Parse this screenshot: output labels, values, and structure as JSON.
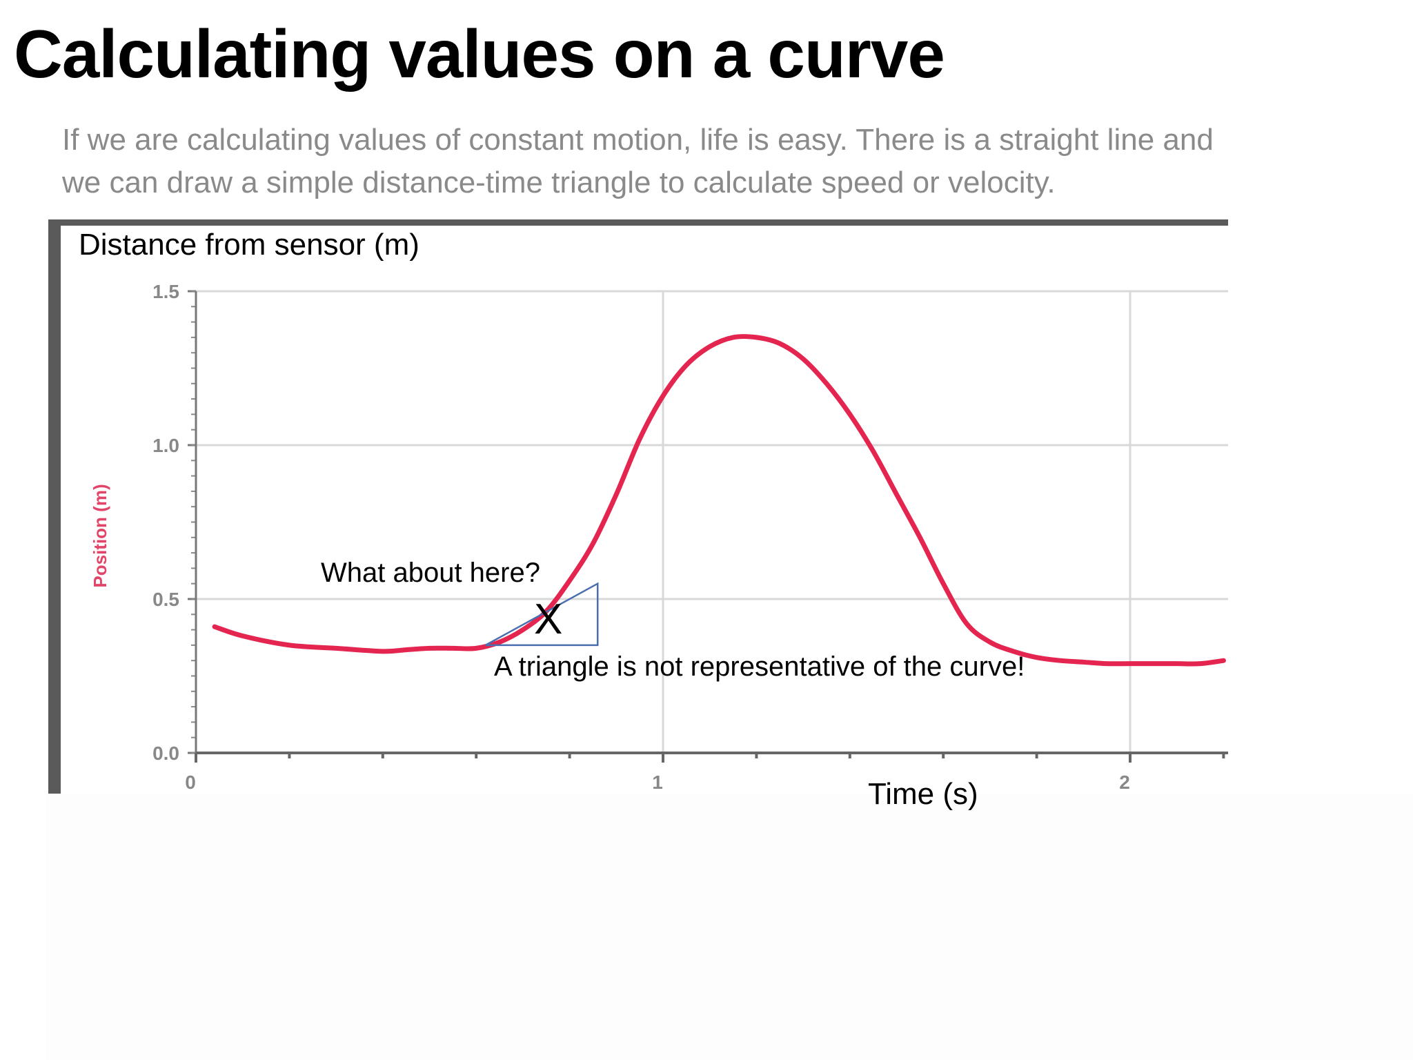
{
  "slide": {
    "title": "Calculating values on a curve",
    "body_lines": [
      "If we are calculating values of constant motion, life is easy. There is a straight line and",
      "we can draw a simple distance-time triangle to calculate speed or velocity."
    ]
  },
  "annotations": {
    "distance_label": "Distance from sensor (m)",
    "time_label": "Time (s)",
    "question": "What about here?",
    "marker": "X",
    "note": "A triangle is not representative of the curve!"
  },
  "chart_data": {
    "type": "line",
    "ylabel": "Position (m)",
    "xlim": [
      0,
      2.2
    ],
    "ylim": [
      0,
      1.5
    ],
    "x_ticks": [
      "0",
      "1",
      "2"
    ],
    "y_ticks": [
      "0.0",
      "0.5",
      "1.0",
      "1.5"
    ],
    "grid": true,
    "colors": {
      "series": "#e3254f",
      "axis_label": "#e3456a",
      "grid": "#d8d8d8",
      "triangle": "#4a6fb0"
    },
    "series": [
      {
        "x": [
          0.04,
          0.1,
          0.2,
          0.3,
          0.4,
          0.45,
          0.5,
          0.55,
          0.6,
          0.65,
          0.7,
          0.75,
          0.8,
          0.85,
          0.9,
          0.95,
          1.0,
          1.05,
          1.1,
          1.15,
          1.2,
          1.25,
          1.3,
          1.35,
          1.4,
          1.45,
          1.5,
          1.55,
          1.6,
          1.65,
          1.7,
          1.75,
          1.8,
          1.85,
          1.9,
          1.95,
          2.0,
          2.05,
          2.1,
          2.15,
          2.2
        ],
        "y": [
          0.41,
          0.38,
          0.35,
          0.34,
          0.33,
          0.335,
          0.34,
          0.34,
          0.34,
          0.36,
          0.4,
          0.46,
          0.56,
          0.68,
          0.84,
          1.02,
          1.16,
          1.26,
          1.32,
          1.35,
          1.35,
          1.33,
          1.28,
          1.2,
          1.1,
          0.98,
          0.84,
          0.7,
          0.55,
          0.42,
          0.36,
          0.33,
          0.31,
          0.3,
          0.295,
          0.29,
          0.29,
          0.29,
          0.29,
          0.29,
          0.3
        ]
      }
    ],
    "triangle": {
      "points": [
        [
          0.62,
          0.35
        ],
        [
          0.86,
          0.35
        ],
        [
          0.86,
          0.55
        ]
      ]
    }
  }
}
